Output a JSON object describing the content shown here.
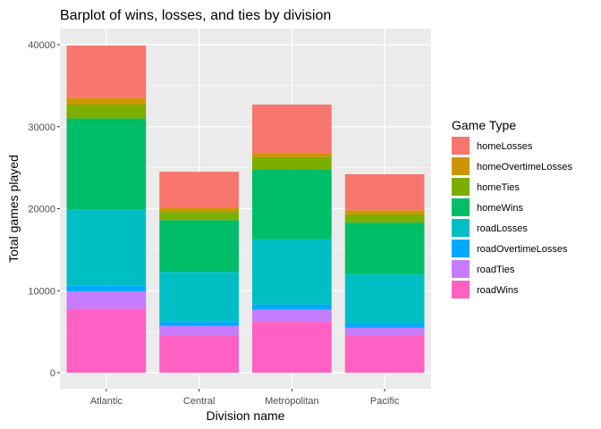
{
  "chart_data": {
    "type": "bar",
    "stacked": true,
    "title": "Barplot of wins, losses, and ties by division",
    "xlabel": "Division name",
    "ylabel": "Total games played",
    "ylim": [
      0,
      42000
    ],
    "yticks": [
      0,
      10000,
      20000,
      30000,
      40000
    ],
    "ytick_labels": [
      "0",
      "10000",
      "20000",
      "30000",
      "40000"
    ],
    "grid": true,
    "legend": {
      "title": "Game Type",
      "position": "right"
    },
    "categories": [
      "Atlantic",
      "Central",
      "Metropolitan",
      "Pacific"
    ],
    "series": [
      {
        "name": "roadWins",
        "color": "#FF61C3",
        "values": [
          7800,
          4600,
          6200,
          4600
        ]
      },
      {
        "name": "roadTies",
        "color": "#C77CFF",
        "values": [
          2100,
          1100,
          1500,
          900
        ]
      },
      {
        "name": "roadOvertimeLosses",
        "color": "#00A9FF",
        "values": [
          700,
          500,
          600,
          600
        ]
      },
      {
        "name": "roadLosses",
        "color": "#00BFC4",
        "values": [
          9300,
          6100,
          8000,
          5900
        ]
      },
      {
        "name": "homeWins",
        "color": "#00BE67",
        "values": [
          11100,
          6300,
          8500,
          6300
        ]
      },
      {
        "name": "homeTies",
        "color": "#7CAE00",
        "values": [
          1700,
          1000,
          1500,
          1000
        ]
      },
      {
        "name": "homeOvertimeLosses",
        "color": "#CD9600",
        "values": [
          800,
          500,
          500,
          500
        ]
      },
      {
        "name": "homeLosses",
        "color": "#F8766D",
        "values": [
          6400,
          4400,
          5900,
          4400
        ]
      }
    ],
    "legend_order": [
      "homeLosses",
      "homeOvertimeLosses",
      "homeTies",
      "homeWins",
      "roadLosses",
      "roadOvertimeLosses",
      "roadTies",
      "roadWins"
    ]
  }
}
